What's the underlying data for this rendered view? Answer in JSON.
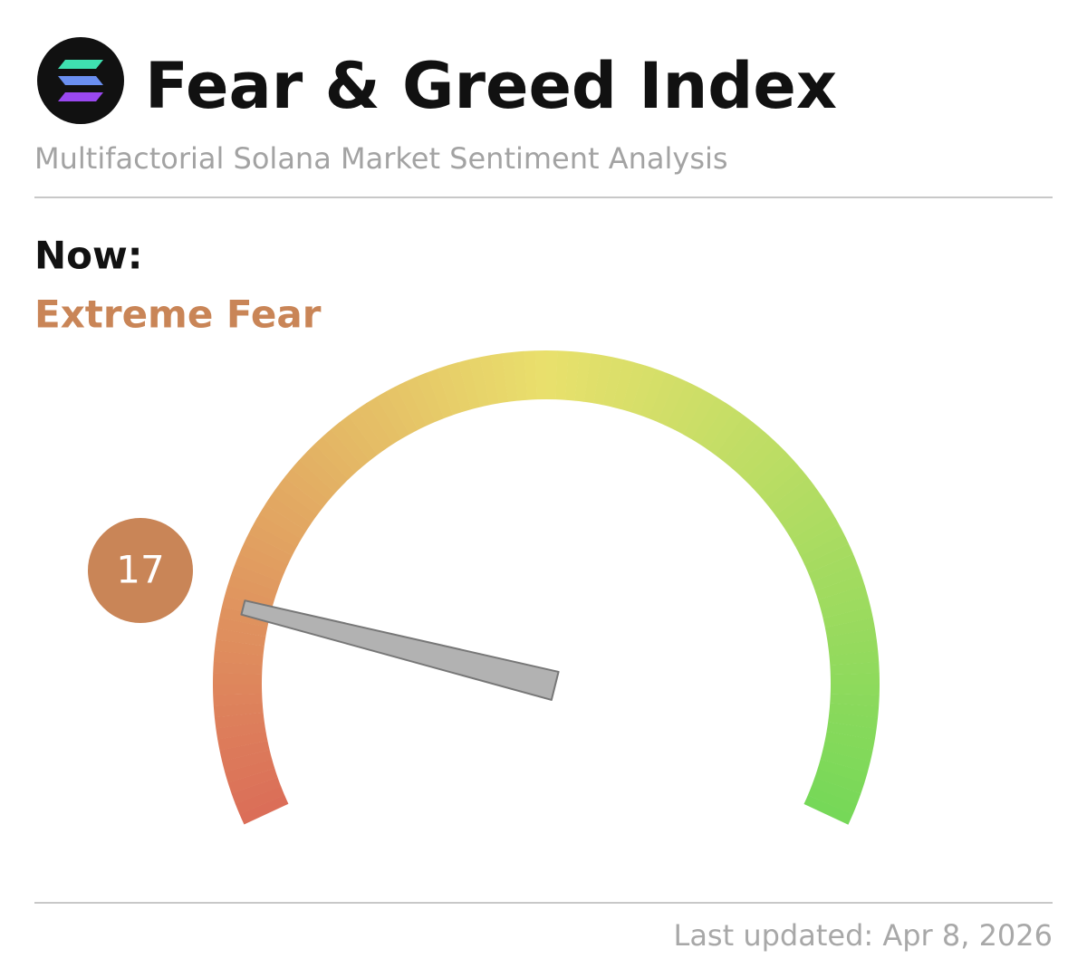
{
  "chart_data": {
    "type": "gauge",
    "title": "Fear & Greed Index",
    "subtitle": "Multifactorial Solana Market Sentiment Analysis",
    "current_label": "Now:",
    "sentiment": "Extreme Fear",
    "value": 17,
    "range": [
      0,
      100
    ],
    "colors": [
      "#db6e58",
      "#e9e06c",
      "#76d858"
    ],
    "needle_color": "#b2b2b2",
    "badge_color": "#c98557",
    "footer": "Last updated: Apr 8, 2026"
  }
}
